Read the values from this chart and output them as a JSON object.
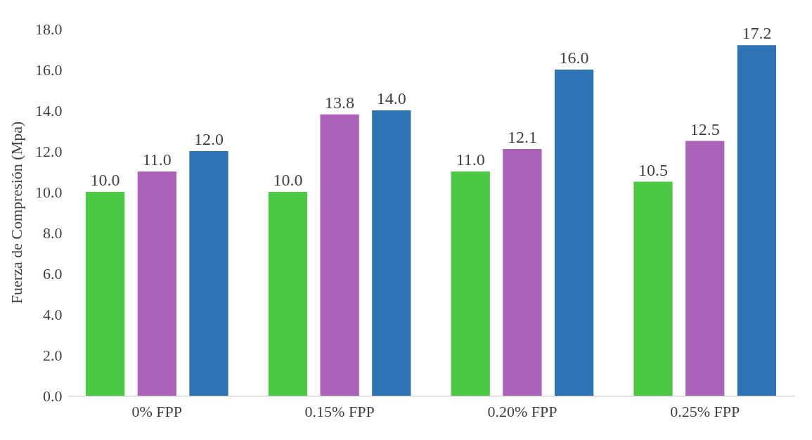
{
  "chart_data": {
    "type": "bar",
    "ylabel": "Fuerza de Compresión (Mpa)",
    "categories": [
      "0% FPP",
      "0.15% FPP",
      "0.20% FPP",
      "0.25% FPP"
    ],
    "series": [
      {
        "color": "#4cc943",
        "values": [
          10.0,
          10.0,
          11.0,
          10.5
        ],
        "value_labels": [
          "10.0",
          "10.0",
          "11.0",
          "10.5"
        ]
      },
      {
        "color": "#ab62b9",
        "values": [
          11.0,
          13.8,
          12.1,
          12.5
        ],
        "value_labels": [
          "11.0",
          "13.8",
          "12.1",
          "12.5"
        ]
      },
      {
        "color": "#2e74b5",
        "values": [
          12.0,
          14.0,
          16.0,
          17.2
        ],
        "value_labels": [
          "12.0",
          "14.0",
          "16.0",
          "17.2"
        ]
      }
    ],
    "ylim": [
      0,
      18
    ],
    "yticks": [
      {
        "value": 0,
        "label": "0.0"
      },
      {
        "value": 2,
        "label": "2.0"
      },
      {
        "value": 4,
        "label": "4.0"
      },
      {
        "value": 6,
        "label": "6.0"
      },
      {
        "value": 8,
        "label": "8.0"
      },
      {
        "value": 10,
        "label": "10.0"
      },
      {
        "value": 12,
        "label": "12.0"
      },
      {
        "value": 14,
        "label": "14.0"
      },
      {
        "value": 16,
        "label": "16.0"
      },
      {
        "value": 18,
        "label": "18.0"
      }
    ]
  }
}
